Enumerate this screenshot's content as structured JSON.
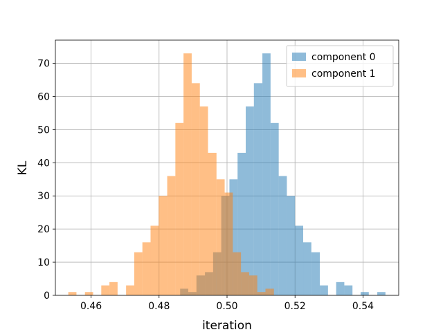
{
  "chart_data": {
    "type": "bar",
    "subtype": "overlapping-histogram",
    "title": "",
    "xlabel": "iteration",
    "ylabel": "KL",
    "xlim": [
      0.4495,
      0.5505
    ],
    "ylim": [
      0,
      77
    ],
    "xticks": [
      0.46,
      0.48,
      0.5,
      0.52,
      0.54
    ],
    "xtick_labels": [
      "0.46",
      "0.48",
      "0.50",
      "0.52",
      "0.54"
    ],
    "yticks": [
      0,
      10,
      20,
      30,
      40,
      50,
      60,
      70
    ],
    "ytick_labels": [
      "0",
      "10",
      "20",
      "30",
      "40",
      "50",
      "60",
      "70"
    ],
    "grid": true,
    "legend_position": "top-right",
    "series": [
      {
        "name": "component 0",
        "color": "#1f77b4",
        "opacity": 0.5,
        "bins": [
          {
            "x0": 0.4862,
            "x1": 0.4886,
            "y": 2
          },
          {
            "x0": 0.4886,
            "x1": 0.491,
            "y": 1
          },
          {
            "x0": 0.491,
            "x1": 0.4935,
            "y": 6
          },
          {
            "x0": 0.4935,
            "x1": 0.4959,
            "y": 7
          },
          {
            "x0": 0.4959,
            "x1": 0.4983,
            "y": 13
          },
          {
            "x0": 0.4983,
            "x1": 0.5007,
            "y": 30
          },
          {
            "x0": 0.5007,
            "x1": 0.5031,
            "y": 35
          },
          {
            "x0": 0.5031,
            "x1": 0.5055,
            "y": 43
          },
          {
            "x0": 0.5055,
            "x1": 0.5079,
            "y": 57
          },
          {
            "x0": 0.5079,
            "x1": 0.5104,
            "y": 64
          },
          {
            "x0": 0.5104,
            "x1": 0.5128,
            "y": 73
          },
          {
            "x0": 0.5128,
            "x1": 0.5152,
            "y": 52
          },
          {
            "x0": 0.5152,
            "x1": 0.5176,
            "y": 36
          },
          {
            "x0": 0.5176,
            "x1": 0.52,
            "y": 30
          },
          {
            "x0": 0.52,
            "x1": 0.5224,
            "y": 21
          },
          {
            "x0": 0.5224,
            "x1": 0.5248,
            "y": 16
          },
          {
            "x0": 0.5248,
            "x1": 0.5273,
            "y": 13
          },
          {
            "x0": 0.5273,
            "x1": 0.5297,
            "y": 3
          },
          {
            "x0": 0.5321,
            "x1": 0.5345,
            "y": 4
          },
          {
            "x0": 0.5345,
            "x1": 0.5369,
            "y": 3
          },
          {
            "x0": 0.5393,
            "x1": 0.5417,
            "y": 1
          },
          {
            "x0": 0.5442,
            "x1": 0.5466,
            "y": 1
          }
        ]
      },
      {
        "name": "component 1",
        "color": "#ff7f0e",
        "opacity": 0.5,
        "bins": [
          {
            "x0": 0.4533,
            "x1": 0.4557,
            "y": 1
          },
          {
            "x0": 0.4582,
            "x1": 0.4606,
            "y": 1
          },
          {
            "x0": 0.463,
            "x1": 0.4654,
            "y": 3
          },
          {
            "x0": 0.4654,
            "x1": 0.4678,
            "y": 4
          },
          {
            "x0": 0.4703,
            "x1": 0.4727,
            "y": 3
          },
          {
            "x0": 0.4727,
            "x1": 0.4751,
            "y": 13
          },
          {
            "x0": 0.4751,
            "x1": 0.4775,
            "y": 16
          },
          {
            "x0": 0.4775,
            "x1": 0.4799,
            "y": 21
          },
          {
            "x0": 0.4799,
            "x1": 0.4824,
            "y": 30
          },
          {
            "x0": 0.4824,
            "x1": 0.4848,
            "y": 36
          },
          {
            "x0": 0.4848,
            "x1": 0.4872,
            "y": 52
          },
          {
            "x0": 0.4872,
            "x1": 0.4896,
            "y": 73
          },
          {
            "x0": 0.4896,
            "x1": 0.492,
            "y": 64
          },
          {
            "x0": 0.492,
            "x1": 0.4944,
            "y": 57
          },
          {
            "x0": 0.4944,
            "x1": 0.4969,
            "y": 43
          },
          {
            "x0": 0.4969,
            "x1": 0.4993,
            "y": 35
          },
          {
            "x0": 0.4993,
            "x1": 0.5017,
            "y": 31
          },
          {
            "x0": 0.5017,
            "x1": 0.5041,
            "y": 13
          },
          {
            "x0": 0.5041,
            "x1": 0.5065,
            "y": 7
          },
          {
            "x0": 0.5065,
            "x1": 0.5089,
            "y": 6
          },
          {
            "x0": 0.5089,
            "x1": 0.5113,
            "y": 1
          },
          {
            "x0": 0.5113,
            "x1": 0.5138,
            "y": 2
          }
        ]
      }
    ]
  }
}
